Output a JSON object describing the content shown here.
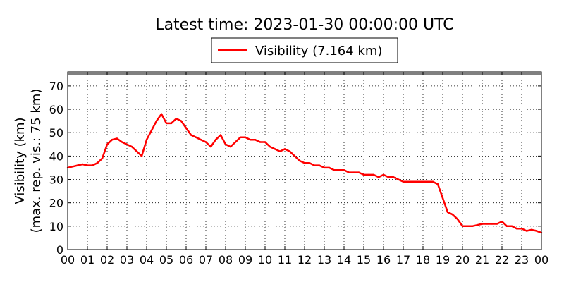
{
  "chart_data": {
    "type": "line",
    "title": "Latest time: 2023-01-30 00:00:00 UTC",
    "ylabel_line1": "Visibility (km)",
    "ylabel_line2": "(max. rep. vis.: 75 km)",
    "xlabel": "",
    "x_ticks": [
      "00",
      "01",
      "02",
      "03",
      "04",
      "05",
      "06",
      "07",
      "08",
      "09",
      "10",
      "11",
      "12",
      "13",
      "14",
      "15",
      "16",
      "17",
      "18",
      "19",
      "20",
      "21",
      "22",
      "23",
      "00"
    ],
    "y_ticks": [
      "0",
      "10",
      "20",
      "30",
      "40",
      "50",
      "60",
      "70"
    ],
    "xlim": [
      0,
      24
    ],
    "ylim": [
      0,
      76
    ],
    "grid": true,
    "legend_placement": "top-center",
    "series": [
      {
        "name": "Visibility (7.164 km)",
        "color": "#ff0000",
        "x": [
          0,
          0.25,
          0.5,
          0.75,
          1,
          1.25,
          1.5,
          1.75,
          2,
          2.25,
          2.5,
          2.75,
          3,
          3.25,
          3.5,
          3.75,
          4,
          4.25,
          4.5,
          4.75,
          5,
          5.25,
          5.5,
          5.75,
          6,
          6.25,
          6.5,
          6.75,
          7,
          7.25,
          7.5,
          7.75,
          8,
          8.25,
          8.5,
          8.75,
          9,
          9.25,
          9.5,
          9.75,
          10,
          10.25,
          10.5,
          10.75,
          11,
          11.25,
          11.5,
          11.75,
          12,
          12.25,
          12.5,
          12.75,
          13,
          13.25,
          13.5,
          13.75,
          14,
          14.25,
          14.5,
          14.75,
          15,
          15.25,
          15.5,
          15.75,
          16,
          16.25,
          16.5,
          16.75,
          17,
          17.25,
          17.5,
          17.75,
          18,
          18.25,
          18.5,
          18.75,
          19,
          19.25,
          19.5,
          19.75,
          20,
          20.25,
          20.5,
          20.75,
          21,
          21.25,
          21.5,
          21.75,
          22,
          22.25,
          22.5,
          22.75,
          23,
          23.25,
          23.5,
          23.75,
          24
        ],
        "values": [
          35,
          35.5,
          36,
          36.5,
          36,
          36,
          37,
          39,
          45,
          47,
          47.5,
          46,
          45,
          44,
          42,
          40,
          47,
          51,
          55,
          58,
          54,
          54,
          56,
          55,
          52,
          49,
          48,
          47,
          46,
          44,
          47,
          49,
          45,
          44,
          46,
          48,
          48,
          47,
          47,
          46,
          46,
          44,
          43,
          42,
          43,
          42,
          40,
          38,
          37,
          37,
          36,
          36,
          35,
          35,
          34,
          34,
          34,
          33,
          33,
          33,
          32,
          32,
          32,
          31,
          32,
          31,
          31,
          30,
          29,
          29,
          29,
          29,
          29,
          29,
          29,
          28,
          22,
          16,
          15,
          13,
          10,
          10,
          10,
          10.5,
          11,
          11,
          11,
          11,
          12,
          10,
          10,
          9,
          9,
          8,
          8.5,
          8,
          7.2
        ]
      }
    ]
  }
}
